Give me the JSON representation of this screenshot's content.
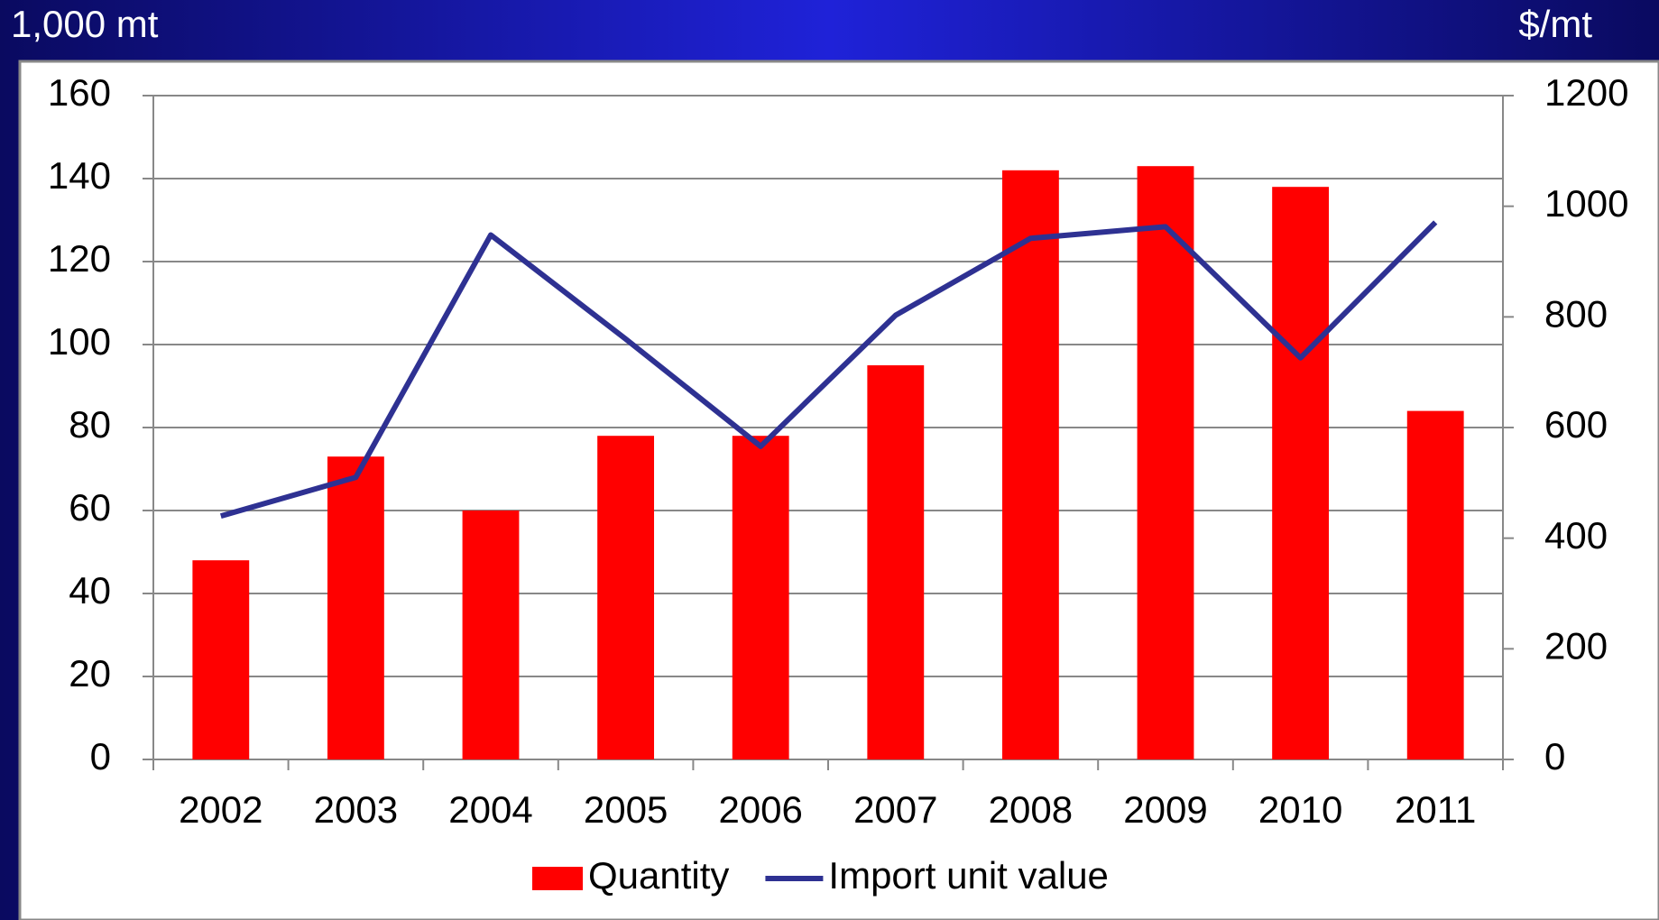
{
  "chart_data": {
    "type": "bar_line",
    "y_label": "1,000 mt",
    "y2_label": "$/mt",
    "categories": [
      "2002",
      "2003",
      "2004",
      "2005",
      "2006",
      "2007",
      "2008",
      "2009",
      "2010",
      "2011"
    ],
    "series": [
      {
        "name": "Quantity",
        "type": "bar",
        "color": "#ff0000",
        "values": [
          48,
          73,
          60,
          78,
          78,
          95,
          142,
          143,
          138,
          84
        ]
      },
      {
        "name": "Import unit value",
        "type": "line",
        "axis": "y2",
        "color": "#2e3192",
        "values": [
          440,
          510,
          948,
          760,
          566,
          803,
          942,
          963,
          726,
          971
        ]
      }
    ],
    "ylim": [
      0,
      160
    ],
    "yticks": [
      0,
      20,
      40,
      60,
      80,
      100,
      120,
      140,
      160
    ],
    "y2lim": [
      0,
      1200
    ],
    "y2ticks": [
      0,
      200,
      400,
      600,
      800,
      1000,
      1200
    ],
    "grid": true,
    "legend": "bottom"
  }
}
